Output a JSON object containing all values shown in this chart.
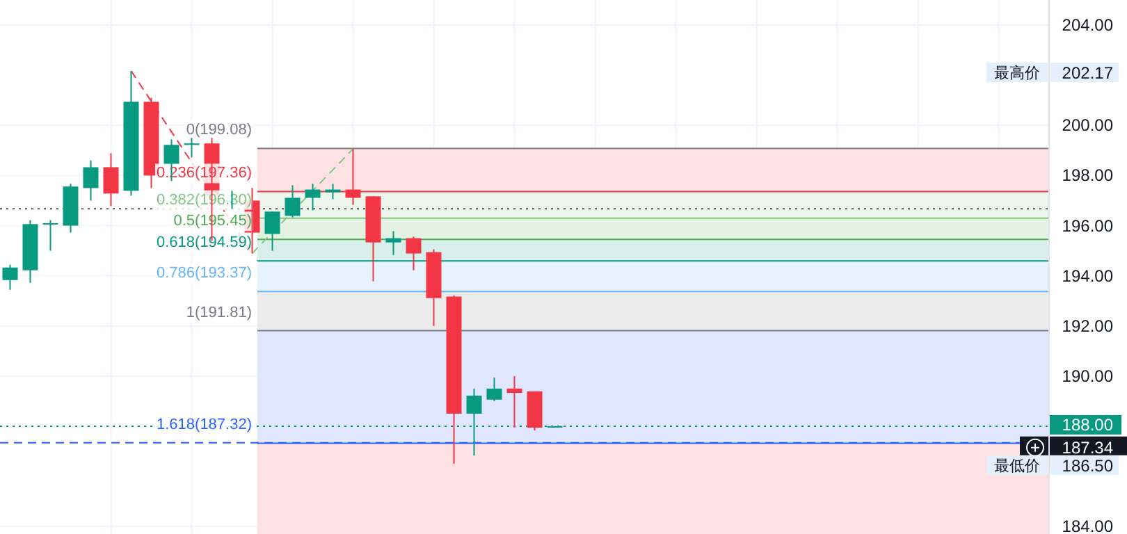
{
  "chart_data": {
    "type": "candlestick",
    "categories": [
      null,
      null,
      null,
      null,
      null,
      null,
      null,
      null,
      null,
      null,
      null,
      null,
      null,
      null,
      null,
      null,
      null,
      null,
      null,
      null,
      null,
      null,
      null,
      null,
      null,
      null,
      null,
      null,
      null,
      null,
      null,
      null,
      null,
      null,
      null,
      null,
      null,
      null,
      null,
      null,
      null,
      null,
      null,
      null,
      null,
      null,
      null,
      null,
      null,
      null,
      null,
      null
    ],
    "ohlc": [
      [
        193.83,
        194.44,
        193.44,
        194.33
      ],
      [
        194.22,
        196.22,
        193.72,
        196.06
      ],
      [
        196.05,
        196.22,
        195.0,
        196.1
      ],
      [
        196.0,
        197.67,
        195.72,
        197.56
      ],
      [
        197.5,
        198.6,
        197.0,
        198.33
      ],
      [
        198.33,
        198.89,
        196.78,
        197.28
      ],
      [
        197.39,
        202.17,
        197.2,
        200.94
      ],
      [
        200.94,
        201.1,
        197.5,
        198.0
      ],
      [
        198.44,
        199.44,
        197.78,
        199.22
      ],
      [
        199.22,
        199.5,
        198.72,
        199.28
      ],
      [
        199.28,
        199.5,
        195.39,
        197.22
      ],
      [
        197.0,
        197.39,
        196.67,
        197.0
      ],
      [
        197.0,
        197.5,
        194.89,
        195.72
      ],
      [
        195.67,
        196.56,
        195.0,
        196.56
      ],
      [
        196.39,
        197.61,
        196.33,
        197.11
      ],
      [
        197.11,
        197.67,
        196.61,
        197.44
      ],
      [
        197.33,
        197.67,
        197.06,
        197.44
      ],
      [
        197.44,
        199.06,
        196.83,
        197.11
      ],
      [
        197.17,
        197.17,
        193.78,
        195.33
      ],
      [
        195.33,
        195.78,
        194.83,
        195.5
      ],
      [
        195.5,
        195.56,
        194.22,
        194.89
      ],
      [
        194.94,
        195.06,
        192.0,
        193.11
      ],
      [
        193.17,
        193.22,
        186.5,
        188.5
      ],
      [
        188.5,
        189.5,
        186.83,
        189.22
      ],
      [
        189.06,
        189.94,
        189.0,
        189.5
      ],
      [
        189.5,
        190.0,
        187.94,
        189.33
      ],
      [
        189.39,
        189.39,
        187.83,
        187.94
      ],
      [
        188.0,
        188.0,
        187.94,
        188.0
      ],
      null,
      null,
      null,
      null,
      null,
      null,
      null,
      null,
      null,
      null,
      null,
      null,
      null,
      null,
      null,
      null,
      null,
      null,
      null,
      null,
      null,
      null,
      null,
      null
    ],
    "colors": [
      "#089981",
      "#089981",
      "#089981",
      "#089981",
      "#089981",
      "#f23645",
      "#089981",
      "#f23645",
      "#089981",
      "#089981",
      "#f23645",
      "#089981",
      "#f23645",
      "#089981",
      "#089981",
      "#089981",
      "#089981",
      "#f23645",
      "#f23645",
      "#089981",
      "#f23645",
      "#f23645",
      "#f23645",
      "#089981",
      "#089981",
      "#f23645",
      "#f23645",
      "#089981",
      null,
      null,
      null,
      null,
      null,
      null,
      null,
      null,
      null,
      null,
      null,
      null,
      null,
      null,
      null,
      null,
      null,
      null,
      null,
      null,
      null,
      null,
      null,
      null
    ],
    "series": [
      {
        "type": "line",
        "color": "#f23645",
        "line_style": "dashed",
        "values": [
          null,
          null,
          null,
          null,
          null,
          null,
          202.17,
          null,
          null,
          null,
          null,
          null,
          194.89,
          null,
          null,
          null,
          null,
          null,
          null,
          null,
          null,
          null,
          null,
          null,
          null,
          null,
          null,
          null,
          null,
          null,
          null,
          null,
          null,
          null,
          null,
          null,
          null,
          null,
          null,
          null,
          null,
          null,
          null,
          null,
          null,
          null,
          null,
          null,
          null,
          null,
          null,
          null
        ]
      },
      {
        "type": "line",
        "color": "#81c784",
        "line_style": "dashed",
        "values": [
          null,
          null,
          null,
          null,
          null,
          null,
          null,
          null,
          null,
          null,
          null,
          null,
          194.89,
          null,
          null,
          null,
          null,
          199.06,
          null,
          null,
          null,
          null,
          null,
          null,
          null,
          null,
          null,
          null,
          null,
          null,
          null,
          null,
          null,
          null,
          null,
          null,
          null,
          null,
          null,
          null,
          null,
          null,
          null,
          null,
          null,
          null,
          null,
          null,
          null,
          null,
          null,
          null
        ]
      }
    ],
    "ylim": [
      183.7,
      205
    ],
    "yticks": [
      {
        "value": 184,
        "label": "184.00"
      },
      {
        "value": 190,
        "label": "190.00"
      },
      {
        "value": 192,
        "label": "192.00"
      },
      {
        "value": 194,
        "label": "194.00"
      },
      {
        "value": 196,
        "label": "196.00"
      },
      {
        "value": 198,
        "label": "198.00"
      },
      {
        "value": 200,
        "label": "200.00"
      },
      {
        "value": 204,
        "label": "204.00"
      }
    ],
    "grid": true,
    "bands": [
      {
        "axis": "y",
        "from": 199.08,
        "to": 197.36,
        "color": "#fde1e3"
      },
      {
        "axis": "y",
        "from": 197.36,
        "to": 196.3,
        "color": "#edf6ec"
      },
      {
        "axis": "y",
        "from": 196.3,
        "to": 195.45,
        "color": "#e4f2e4"
      },
      {
        "axis": "y",
        "from": 195.45,
        "to": 194.59,
        "color": "#d9efeb"
      },
      {
        "axis": "y",
        "from": 194.59,
        "to": 193.37,
        "color": "#e6f2fd"
      },
      {
        "axis": "y",
        "from": 193.37,
        "to": 191.81,
        "color": "#ebebec"
      },
      {
        "axis": "y",
        "from": 191.81,
        "to": 187.32,
        "color": "#dfe6fd"
      },
      {
        "axis": "y",
        "from": 187.32,
        "to": 183.7,
        "color": "#fde1e3"
      }
    ],
    "ref_lines": [
      {
        "axis": "y",
        "value": 199.08,
        "label": "0(199.08)",
        "color": "#787b86"
      },
      {
        "axis": "y",
        "value": 197.36,
        "label": "0.236(197.36)",
        "color": "#f23645"
      },
      {
        "axis": "y",
        "value": 196.3,
        "label": "0.382(196.30)",
        "color": "#81c784"
      },
      {
        "axis": "y",
        "value": 195.45,
        "label": "0.5(195.45)",
        "color": "#4caf50"
      },
      {
        "axis": "y",
        "value": 194.59,
        "label": "0.618(194.59)",
        "color": "#089981"
      },
      {
        "axis": "y",
        "value": 193.37,
        "label": "0.786(193.37)",
        "color": "#64b5f6"
      },
      {
        "axis": "y",
        "value": 191.81,
        "label": "1(191.81)",
        "color": "#787b86"
      },
      {
        "axis": "y",
        "value": 187.32,
        "label": "1.618(187.32)",
        "color": "#2962ff"
      },
      {
        "axis": "y",
        "value": 196.67,
        "color": "#555555",
        "line_style": "dotted"
      },
      {
        "axis": "y",
        "value": 188.0,
        "label": "188.00",
        "color": "#089981",
        "line_style": "dotted"
      },
      {
        "axis": "y",
        "value": 187.34,
        "label": "187.34",
        "color": "#2962ff",
        "line_style": "dashed"
      }
    ],
    "annotations": [
      "最高价",
      "202.17",
      "最低价",
      "186.50"
    ]
  }
}
